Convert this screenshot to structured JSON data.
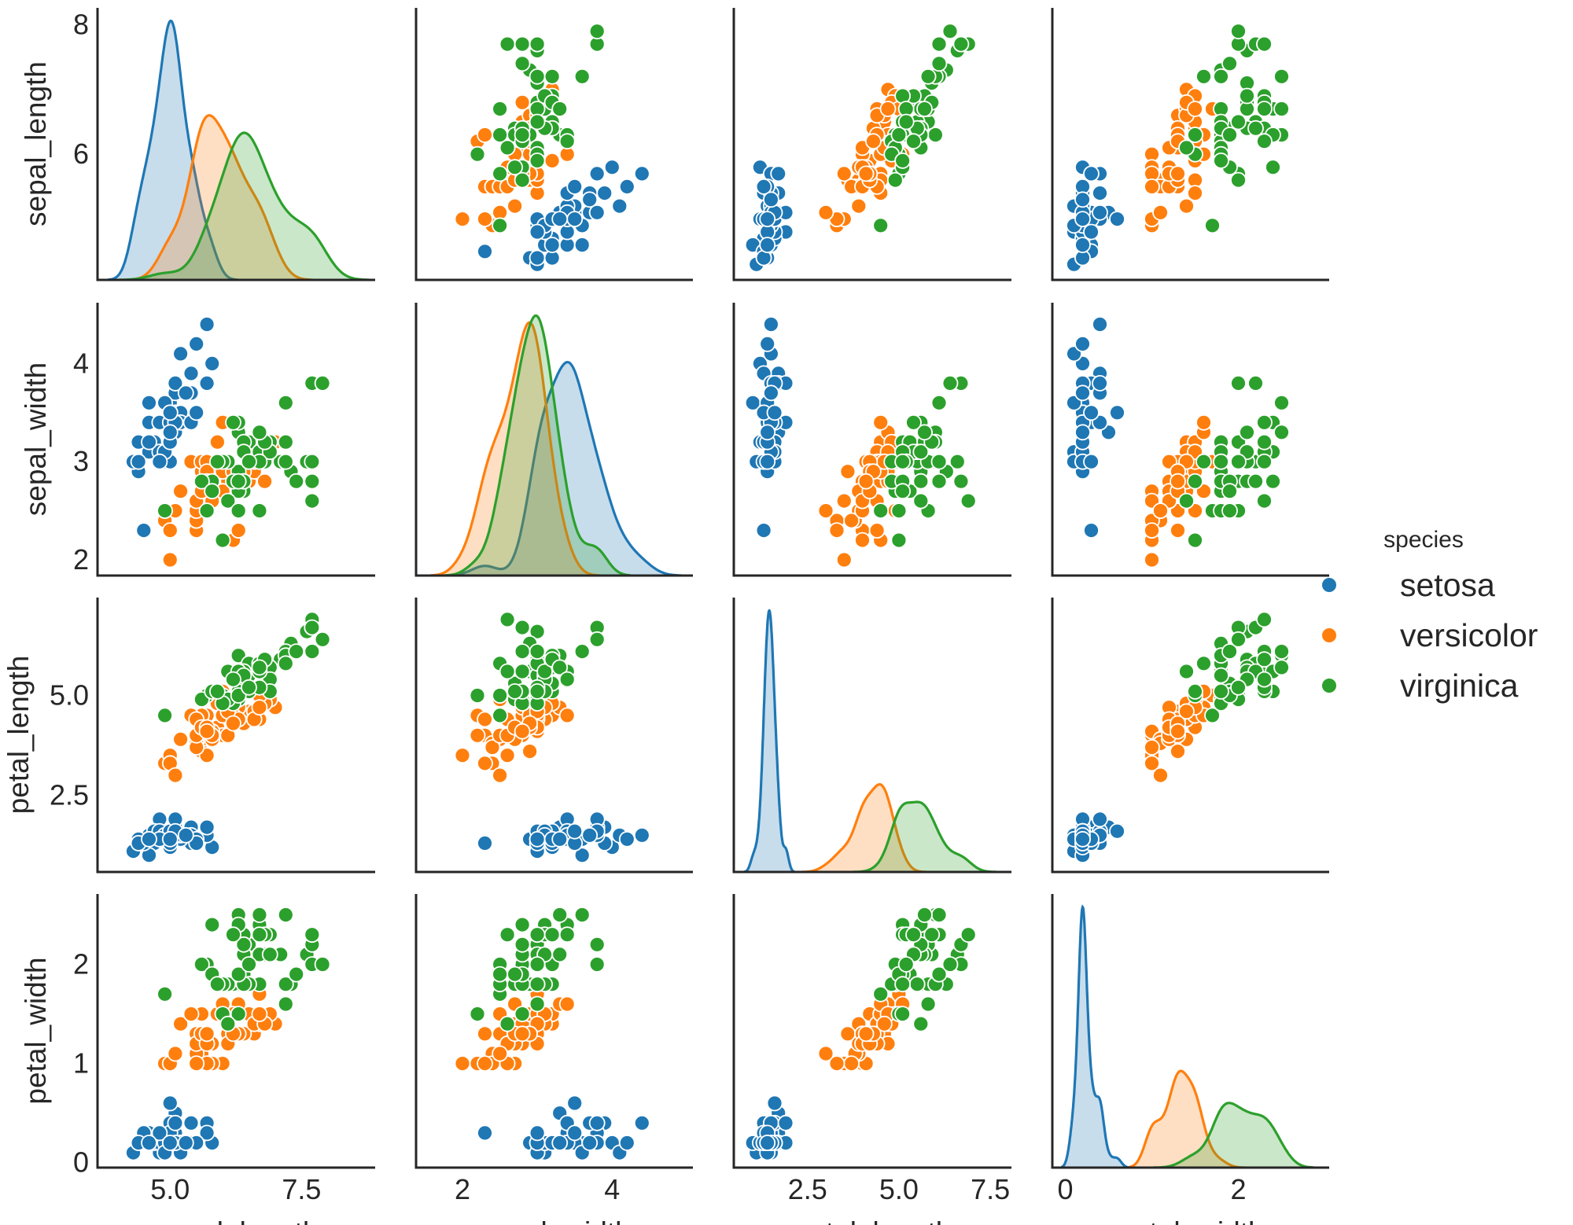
{
  "chart_data": {
    "type": "pairplot",
    "variables": [
      "sepal_length",
      "sepal_width",
      "petal_length",
      "petal_width"
    ],
    "axis_labels": [
      "sepal_length",
      "sepal_width",
      "petal_length",
      "petal_width"
    ],
    "ranges": [
      [
        3.62,
        8.9
      ],
      [
        1.38,
        5.08
      ],
      [
        0.48,
        8.08
      ],
      [
        -0.15,
        3.05
      ]
    ],
    "row_ranges": [
      [
        4.06,
        8.26
      ],
      [
        1.84,
        4.62
      ],
      [
        0.58,
        7.45
      ],
      [
        -0.05,
        2.71
      ]
    ],
    "x_ticks": [
      [
        {
          "v": 5.0,
          "label": "5.0"
        },
        {
          "v": 7.5,
          "label": "7.5"
        }
      ],
      [
        {
          "v": 2,
          "label": "2"
        },
        {
          "v": 4,
          "label": "4"
        }
      ],
      [
        {
          "v": 2.5,
          "label": "2.5"
        },
        {
          "v": 5.0,
          "label": "5.0"
        },
        {
          "v": 7.5,
          "label": "7.5"
        }
      ],
      [
        {
          "v": 0,
          "label": "0"
        },
        {
          "v": 2,
          "label": "2"
        }
      ]
    ],
    "y_ticks": [
      [
        {
          "v": 6,
          "label": "6"
        },
        {
          "v": 8,
          "label": "8"
        }
      ],
      [
        {
          "v": 2,
          "label": "2"
        },
        {
          "v": 3,
          "label": "3"
        },
        {
          "v": 4,
          "label": "4"
        }
      ],
      [
        {
          "v": 2.5,
          "label": "2.5"
        },
        {
          "v": 5.0,
          "label": "5.0"
        }
      ],
      [
        {
          "v": 0,
          "label": "0"
        },
        {
          "v": 1,
          "label": "1"
        },
        {
          "v": 2,
          "label": "2"
        }
      ]
    ],
    "diag_kind": "kde",
    "grid": false,
    "legend": {
      "title": "species",
      "placement": "right"
    },
    "series": [
      {
        "name": "setosa",
        "color": "#1f77b4",
        "points": [
          [
            5.1,
            3.5,
            1.4,
            0.2
          ],
          [
            4.9,
            3.0,
            1.4,
            0.2
          ],
          [
            4.7,
            3.2,
            1.3,
            0.2
          ],
          [
            4.6,
            3.1,
            1.5,
            0.2
          ],
          [
            5.0,
            3.6,
            1.4,
            0.2
          ],
          [
            5.4,
            3.9,
            1.7,
            0.4
          ],
          [
            4.6,
            3.4,
            1.4,
            0.3
          ],
          [
            5.0,
            3.4,
            1.5,
            0.2
          ],
          [
            4.4,
            2.9,
            1.4,
            0.2
          ],
          [
            4.9,
            3.1,
            1.5,
            0.1
          ],
          [
            5.4,
            3.7,
            1.5,
            0.2
          ],
          [
            4.8,
            3.4,
            1.6,
            0.2
          ],
          [
            4.8,
            3.0,
            1.4,
            0.1
          ],
          [
            4.3,
            3.0,
            1.1,
            0.1
          ],
          [
            5.8,
            4.0,
            1.2,
            0.2
          ],
          [
            5.7,
            4.4,
            1.5,
            0.4
          ],
          [
            5.4,
            3.9,
            1.3,
            0.4
          ],
          [
            5.1,
            3.5,
            1.4,
            0.3
          ],
          [
            5.7,
            3.8,
            1.7,
            0.3
          ],
          [
            5.1,
            3.8,
            1.5,
            0.3
          ],
          [
            5.4,
            3.4,
            1.7,
            0.2
          ],
          [
            5.1,
            3.7,
            1.5,
            0.4
          ],
          [
            4.6,
            3.6,
            1.0,
            0.2
          ],
          [
            5.1,
            3.3,
            1.7,
            0.5
          ],
          [
            4.8,
            3.4,
            1.9,
            0.2
          ],
          [
            5.0,
            3.0,
            1.6,
            0.2
          ],
          [
            5.0,
            3.4,
            1.6,
            0.4
          ],
          [
            5.2,
            3.5,
            1.5,
            0.2
          ],
          [
            5.2,
            3.4,
            1.4,
            0.2
          ],
          [
            4.7,
            3.2,
            1.6,
            0.2
          ],
          [
            4.8,
            3.1,
            1.6,
            0.2
          ],
          [
            5.4,
            3.4,
            1.5,
            0.4
          ],
          [
            5.2,
            4.1,
            1.5,
            0.1
          ],
          [
            5.5,
            4.2,
            1.4,
            0.2
          ],
          [
            4.9,
            3.1,
            1.5,
            0.2
          ],
          [
            5.0,
            3.2,
            1.2,
            0.2
          ],
          [
            5.5,
            3.5,
            1.3,
            0.2
          ],
          [
            4.9,
            3.6,
            1.4,
            0.1
          ],
          [
            4.4,
            3.0,
            1.3,
            0.2
          ],
          [
            5.1,
            3.4,
            1.5,
            0.2
          ],
          [
            5.0,
            3.5,
            1.3,
            0.3
          ],
          [
            4.5,
            2.3,
            1.3,
            0.3
          ],
          [
            4.4,
            3.2,
            1.3,
            0.2
          ],
          [
            5.0,
            3.5,
            1.6,
            0.6
          ],
          [
            5.1,
            3.8,
            1.9,
            0.4
          ],
          [
            4.8,
            3.0,
            1.4,
            0.3
          ],
          [
            5.1,
            3.8,
            1.6,
            0.2
          ],
          [
            4.6,
            3.2,
            1.4,
            0.2
          ],
          [
            5.3,
            3.7,
            1.5,
            0.2
          ],
          [
            5.0,
            3.3,
            1.4,
            0.2
          ]
        ]
      },
      {
        "name": "versicolor",
        "color": "#ff7f0e",
        "points": [
          [
            7.0,
            3.2,
            4.7,
            1.4
          ],
          [
            6.4,
            3.2,
            4.5,
            1.5
          ],
          [
            6.9,
            3.1,
            4.9,
            1.5
          ],
          [
            5.5,
            2.3,
            4.0,
            1.3
          ],
          [
            6.5,
            2.8,
            4.6,
            1.5
          ],
          [
            5.7,
            2.8,
            4.5,
            1.3
          ],
          [
            6.3,
            3.3,
            4.7,
            1.6
          ],
          [
            4.9,
            2.4,
            3.3,
            1.0
          ],
          [
            6.6,
            2.9,
            4.6,
            1.3
          ],
          [
            5.2,
            2.7,
            3.9,
            1.4
          ],
          [
            5.0,
            2.0,
            3.5,
            1.0
          ],
          [
            5.9,
            3.0,
            4.2,
            1.5
          ],
          [
            6.0,
            2.2,
            4.0,
            1.0
          ],
          [
            6.1,
            2.9,
            4.7,
            1.4
          ],
          [
            5.6,
            2.9,
            3.6,
            1.3
          ],
          [
            6.7,
            3.1,
            4.4,
            1.4
          ],
          [
            5.6,
            3.0,
            4.5,
            1.5
          ],
          [
            5.8,
            2.7,
            4.1,
            1.0
          ],
          [
            6.2,
            2.2,
            4.5,
            1.5
          ],
          [
            5.6,
            2.5,
            3.9,
            1.1
          ],
          [
            5.9,
            3.2,
            4.8,
            1.8
          ],
          [
            6.1,
            2.8,
            4.0,
            1.3
          ],
          [
            6.3,
            2.5,
            4.9,
            1.5
          ],
          [
            6.1,
            2.8,
            4.7,
            1.2
          ],
          [
            6.4,
            2.9,
            4.3,
            1.3
          ],
          [
            6.6,
            3.0,
            4.4,
            1.4
          ],
          [
            6.8,
            2.8,
            4.8,
            1.4
          ],
          [
            6.7,
            3.0,
            5.0,
            1.7
          ],
          [
            6.0,
            2.9,
            4.5,
            1.5
          ],
          [
            5.7,
            2.6,
            3.5,
            1.0
          ],
          [
            5.5,
            2.4,
            3.8,
            1.1
          ],
          [
            5.5,
            2.4,
            3.7,
            1.0
          ],
          [
            5.8,
            2.7,
            3.9,
            1.2
          ],
          [
            6.0,
            2.7,
            5.1,
            1.6
          ],
          [
            5.4,
            3.0,
            4.5,
            1.5
          ],
          [
            6.0,
            3.4,
            4.5,
            1.6
          ],
          [
            6.7,
            3.1,
            4.7,
            1.5
          ],
          [
            6.3,
            2.3,
            4.4,
            1.3
          ],
          [
            5.6,
            3.0,
            4.1,
            1.3
          ],
          [
            5.5,
            2.5,
            4.0,
            1.3
          ],
          [
            5.5,
            2.6,
            4.4,
            1.2
          ],
          [
            6.1,
            3.0,
            4.6,
            1.4
          ],
          [
            5.8,
            2.6,
            4.0,
            1.2
          ],
          [
            5.0,
            2.3,
            3.3,
            1.0
          ],
          [
            5.6,
            2.7,
            4.2,
            1.3
          ],
          [
            5.7,
            3.0,
            4.2,
            1.2
          ],
          [
            5.7,
            2.9,
            4.2,
            1.3
          ],
          [
            6.2,
            2.9,
            4.3,
            1.3
          ],
          [
            5.1,
            2.5,
            3.0,
            1.1
          ],
          [
            5.7,
            2.8,
            4.1,
            1.3
          ]
        ]
      },
      {
        "name": "virginica",
        "color": "#2ca02c",
        "points": [
          [
            6.3,
            3.3,
            6.0,
            2.5
          ],
          [
            5.8,
            2.7,
            5.1,
            1.9
          ],
          [
            7.1,
            3.0,
            5.9,
            2.1
          ],
          [
            6.3,
            2.9,
            5.6,
            1.8
          ],
          [
            6.5,
            3.0,
            5.8,
            2.2
          ],
          [
            7.6,
            3.0,
            6.6,
            2.1
          ],
          [
            4.9,
            2.5,
            4.5,
            1.7
          ],
          [
            7.3,
            2.9,
            6.3,
            1.8
          ],
          [
            6.7,
            2.5,
            5.8,
            1.8
          ],
          [
            7.2,
            3.6,
            6.1,
            2.5
          ],
          [
            6.5,
            3.2,
            5.1,
            2.0
          ],
          [
            6.4,
            2.7,
            5.3,
            1.9
          ],
          [
            6.8,
            3.0,
            5.5,
            2.1
          ],
          [
            5.7,
            2.5,
            5.0,
            2.0
          ],
          [
            5.8,
            2.8,
            5.1,
            2.4
          ],
          [
            6.4,
            3.2,
            5.3,
            2.3
          ],
          [
            6.5,
            3.0,
            5.5,
            1.8
          ],
          [
            7.7,
            3.8,
            6.7,
            2.2
          ],
          [
            7.7,
            2.6,
            6.9,
            2.3
          ],
          [
            6.0,
            2.2,
            5.0,
            1.5
          ],
          [
            6.9,
            3.2,
            5.7,
            2.3
          ],
          [
            5.6,
            2.8,
            4.9,
            2.0
          ],
          [
            7.7,
            2.8,
            6.7,
            2.0
          ],
          [
            6.3,
            2.7,
            4.9,
            1.8
          ],
          [
            6.7,
            3.3,
            5.7,
            2.1
          ],
          [
            7.2,
            3.2,
            6.0,
            1.8
          ],
          [
            6.2,
            2.8,
            4.8,
            1.8
          ],
          [
            6.1,
            3.0,
            4.9,
            1.8
          ],
          [
            6.4,
            2.8,
            5.6,
            2.1
          ],
          [
            7.2,
            3.0,
            5.8,
            1.6
          ],
          [
            7.4,
            2.8,
            6.1,
            1.9
          ],
          [
            7.9,
            3.8,
            6.4,
            2.0
          ],
          [
            6.4,
            2.8,
            5.6,
            2.2
          ],
          [
            6.3,
            2.8,
            5.1,
            1.5
          ],
          [
            6.1,
            2.6,
            5.6,
            1.4
          ],
          [
            7.7,
            3.0,
            6.1,
            2.3
          ],
          [
            6.3,
            3.4,
            5.6,
            2.4
          ],
          [
            6.4,
            3.1,
            5.5,
            1.8
          ],
          [
            6.0,
            3.0,
            4.8,
            1.8
          ],
          [
            6.9,
            3.1,
            5.4,
            2.1
          ],
          [
            6.7,
            3.1,
            5.6,
            2.4
          ],
          [
            6.9,
            3.1,
            5.1,
            2.3
          ],
          [
            5.8,
            2.7,
            5.1,
            1.9
          ],
          [
            6.8,
            3.2,
            5.9,
            2.3
          ],
          [
            6.7,
            3.3,
            5.7,
            2.5
          ],
          [
            6.7,
            3.0,
            5.2,
            2.3
          ],
          [
            6.3,
            2.5,
            5.0,
            1.9
          ],
          [
            6.5,
            3.0,
            5.2,
            2.0
          ],
          [
            6.2,
            3.4,
            5.4,
            2.3
          ],
          [
            5.9,
            3.0,
            5.1,
            1.8
          ]
        ]
      }
    ]
  }
}
